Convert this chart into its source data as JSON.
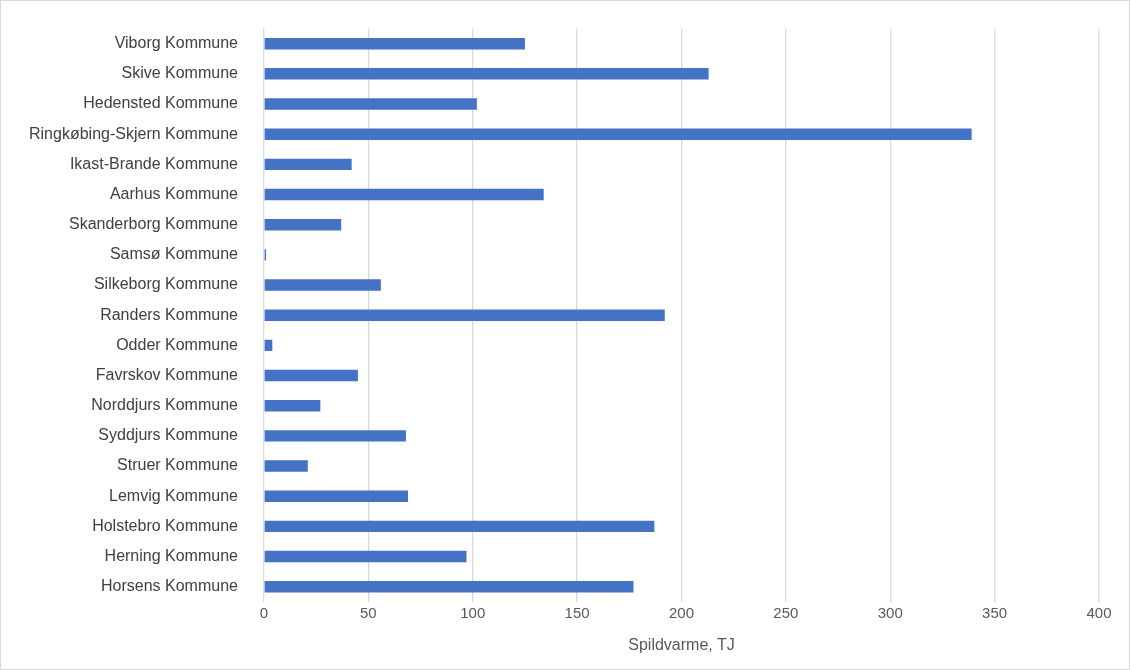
{
  "chart_data": {
    "type": "bar",
    "orientation": "horizontal",
    "xlabel": "Spildvarme, TJ",
    "categories": [
      "Viborg Kommune",
      "Skive Kommune",
      "Hedensted Kommune",
      "Ringkøbing-Skjern Kommune",
      "Ikast-Brande Kommune",
      "Aarhus Kommune",
      "Skanderborg Kommune",
      "Samsø Kommune",
      "Silkeborg Kommune",
      "Randers Kommune",
      "Odder Kommune",
      "Favrskov Kommune",
      "Norddjurs Kommune",
      "Syddjurs Kommune",
      "Struer Kommune",
      "Lemvig Kommune",
      "Holstebro Kommune",
      "Herning Kommune",
      "Horsens Kommune"
    ],
    "values": [
      125,
      213,
      102,
      339,
      42,
      134,
      37,
      1,
      56,
      192,
      4,
      45,
      27,
      68,
      21,
      69,
      187,
      97,
      177
    ],
    "color": "#4472c4",
    "xlim": [
      0,
      400
    ],
    "xticks": [
      0,
      50,
      100,
      150,
      200,
      250,
      300,
      350,
      400
    ],
    "grid": "x"
  }
}
